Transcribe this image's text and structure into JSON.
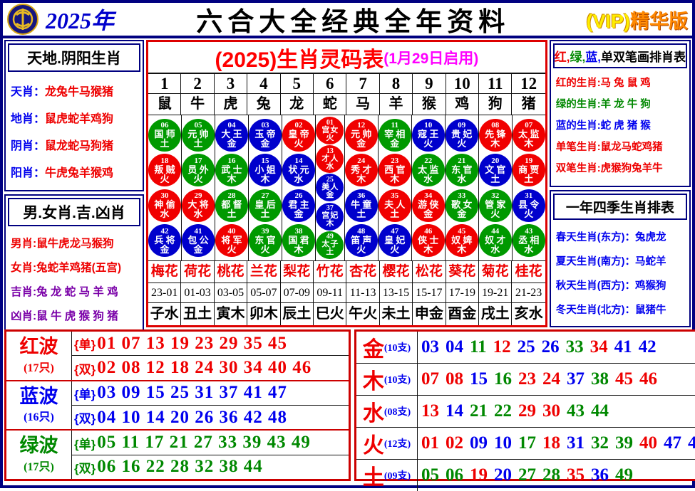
{
  "header": {
    "year": "2025年",
    "title": "六合大全经典全年资料",
    "vip": "(VIP)",
    "vip_edition": "精华版",
    "logo_icon": "coin-emblem"
  },
  "left_top": {
    "title": "天地.阴阳生肖",
    "rows": [
      {
        "label": "天肖",
        "value": "龙兔牛马猴猪"
      },
      {
        "label": "地肖",
        "value": "鼠虎蛇羊鸡狗"
      },
      {
        "label": "阴肖",
        "value": "鼠龙蛇马狗猪"
      },
      {
        "label": "阳肖",
        "value": "牛虎兔羊猴鸡"
      }
    ]
  },
  "left_bottom": {
    "title": "男.女肖.吉.凶肖",
    "rows": [
      {
        "label": "男肖",
        "value": "鼠牛虎龙马猴狗",
        "label_color": "red",
        "value_color": "red"
      },
      {
        "label": "女肖",
        "value": "兔蛇羊鸡猪(五宫)",
        "label_color": "red",
        "value_color": "red"
      },
      {
        "label": "吉肖",
        "value": "兔 龙 蛇 马 羊 鸡",
        "label_color": "purple",
        "value_color": "purple"
      },
      {
        "label": "凶肖",
        "value": "鼠 牛 虎 猴 狗 猪",
        "label_color": "purple",
        "value_color": "purple"
      }
    ]
  },
  "center": {
    "title": "(2025)生肖灵码表",
    "subtitle": "(1月29日启用)",
    "columns": [
      {
        "num": "1",
        "animal": "鼠",
        "flower": "梅花",
        "time": "23-01",
        "zodiac": "子水",
        "balls": [
          {
            "n": "06",
            "r": "国师",
            "e": "土",
            "c": "green"
          },
          {
            "n": "18",
            "r": "叛贼",
            "e": "火",
            "c": "red"
          },
          {
            "n": "30",
            "r": "神偷",
            "e": "水",
            "c": "red"
          },
          {
            "n": "42",
            "r": "兵将",
            "e": "金",
            "c": "blue"
          }
        ]
      },
      {
        "num": "2",
        "animal": "牛",
        "flower": "荷花",
        "time": "01-03",
        "zodiac": "丑土",
        "balls": [
          {
            "n": "05",
            "r": "元帅",
            "e": "土",
            "c": "green"
          },
          {
            "n": "17",
            "r": "员外",
            "e": "火",
            "c": "green"
          },
          {
            "n": "29",
            "r": "大将",
            "e": "水",
            "c": "red"
          },
          {
            "n": "41",
            "r": "包公",
            "e": "金",
            "c": "blue"
          }
        ]
      },
      {
        "num": "3",
        "animal": "虎",
        "flower": "桃花",
        "time": "03-05",
        "zodiac": "寅木",
        "balls": [
          {
            "n": "04",
            "r": "大王",
            "e": "金",
            "c": "blue"
          },
          {
            "n": "16",
            "r": "武士",
            "e": "木",
            "c": "green"
          },
          {
            "n": "28",
            "r": "都督",
            "e": "土",
            "c": "green"
          },
          {
            "n": "40",
            "r": "将军",
            "e": "火",
            "c": "red"
          }
        ]
      },
      {
        "num": "4",
        "animal": "兔",
        "flower": "兰花",
        "time": "05-07",
        "zodiac": "卯木",
        "balls": [
          {
            "n": "03",
            "r": "玉帝",
            "e": "金",
            "c": "blue"
          },
          {
            "n": "15",
            "r": "小姐",
            "e": "木",
            "c": "blue"
          },
          {
            "n": "27",
            "r": "皇后",
            "e": "土",
            "c": "green"
          },
          {
            "n": "39",
            "r": "东官",
            "e": "火",
            "c": "green"
          }
        ]
      },
      {
        "num": "5",
        "animal": "龙",
        "flower": "梨花",
        "time": "07-09",
        "zodiac": "辰土",
        "balls": [
          {
            "n": "02",
            "r": "皇帝",
            "e": "火",
            "c": "red"
          },
          {
            "n": "14",
            "r": "状元",
            "e": "水",
            "c": "blue"
          },
          {
            "n": "26",
            "r": "君主",
            "e": "金",
            "c": "blue"
          },
          {
            "n": "38",
            "r": "国君",
            "e": "木",
            "c": "green"
          }
        ]
      },
      {
        "num": "6",
        "animal": "蛇",
        "flower": "竹花",
        "time": "09-11",
        "zodiac": "巳火",
        "balls": [
          {
            "n": "01",
            "r": "宫女",
            "e": "火",
            "c": "red"
          },
          {
            "n": "13",
            "r": "才人",
            "e": "水",
            "c": "red"
          },
          {
            "n": "25",
            "r": "美人",
            "e": "金",
            "c": "blue"
          },
          {
            "n": "37",
            "r": "宫妃",
            "e": "木",
            "c": "blue"
          },
          {
            "n": "49",
            "r": "太子",
            "e": "土",
            "c": "green"
          }
        ]
      },
      {
        "num": "7",
        "animal": "马",
        "flower": "杏花",
        "time": "11-13",
        "zodiac": "午火",
        "balls": [
          {
            "n": "12",
            "r": "元帅",
            "e": "金",
            "c": "red"
          },
          {
            "n": "24",
            "r": "秀才",
            "e": "木",
            "c": "red"
          },
          {
            "n": "36",
            "r": "牛童",
            "e": "土",
            "c": "blue"
          },
          {
            "n": "48",
            "r": "笛声",
            "e": "火",
            "c": "blue"
          }
        ]
      },
      {
        "num": "8",
        "animal": "羊",
        "flower": "樱花",
        "time": "13-15",
        "zodiac": "未土",
        "balls": [
          {
            "n": "11",
            "r": "宰相",
            "e": "金",
            "c": "green"
          },
          {
            "n": "23",
            "r": "西官",
            "e": "木",
            "c": "red"
          },
          {
            "n": "35",
            "r": "夫人",
            "e": "土",
            "c": "red"
          },
          {
            "n": "47",
            "r": "皇妃",
            "e": "火",
            "c": "blue"
          }
        ]
      },
      {
        "num": "9",
        "animal": "猴",
        "flower": "松花",
        "time": "15-17",
        "zodiac": "申金",
        "balls": [
          {
            "n": "10",
            "r": "寇王",
            "e": "火",
            "c": "blue"
          },
          {
            "n": "22",
            "r": "太监",
            "e": "水",
            "c": "green"
          },
          {
            "n": "34",
            "r": "游侠",
            "e": "金",
            "c": "red"
          },
          {
            "n": "46",
            "r": "侠士",
            "e": "木",
            "c": "red"
          }
        ]
      },
      {
        "num": "10",
        "animal": "鸡",
        "flower": "葵花",
        "time": "17-19",
        "zodiac": "酉金",
        "balls": [
          {
            "n": "09",
            "r": "贵妃",
            "e": "火",
            "c": "blue"
          },
          {
            "n": "21",
            "r": "东官",
            "e": "水",
            "c": "green"
          },
          {
            "n": "33",
            "r": "歌女",
            "e": "金",
            "c": "green"
          },
          {
            "n": "45",
            "r": "奴婢",
            "e": "木",
            "c": "red"
          }
        ]
      },
      {
        "num": "11",
        "animal": "狗",
        "flower": "菊花",
        "time": "19-21",
        "zodiac": "戌土",
        "balls": [
          {
            "n": "08",
            "r": "先锋",
            "e": "木",
            "c": "red"
          },
          {
            "n": "20",
            "r": "文官",
            "e": "土",
            "c": "blue"
          },
          {
            "n": "32",
            "r": "管家",
            "e": "火",
            "c": "green"
          },
          {
            "n": "44",
            "r": "奴才",
            "e": "水",
            "c": "green"
          }
        ]
      },
      {
        "num": "12",
        "animal": "猪",
        "flower": "桂花",
        "time": "21-23",
        "zodiac": "亥水",
        "balls": [
          {
            "n": "07",
            "r": "太监",
            "e": "木",
            "c": "red"
          },
          {
            "n": "19",
            "r": "商贾",
            "e": "土",
            "c": "red"
          },
          {
            "n": "31",
            "r": "县令",
            "e": "火",
            "c": "blue"
          },
          {
            "n": "43",
            "r": "丞相",
            "e": "水",
            "c": "green"
          }
        ]
      }
    ]
  },
  "right_top": {
    "title_parts": [
      {
        "t": "红,",
        "c": "red"
      },
      {
        "t": "绿,",
        "c": "green"
      },
      {
        "t": "蓝,",
        "c": "blue"
      },
      {
        "t": "单双笔画排肖表",
        "c": "black"
      }
    ],
    "rows": [
      {
        "label": "红的生肖",
        "value": "马 兔 鼠 鸡",
        "color": "red"
      },
      {
        "label": "绿的生肖",
        "value": "羊 龙 牛 狗",
        "color": "green"
      },
      {
        "label": "蓝的生肖",
        "value": "蛇 虎 猪 猴",
        "color": "blue"
      },
      {
        "label": "单笔生肖",
        "value": "鼠龙马蛇鸡猪",
        "color": "red"
      },
      {
        "label": "双笔生肖",
        "value": "虎猴狗兔羊牛",
        "color": "red"
      }
    ]
  },
  "right_bottom": {
    "title": "一年四季生肖排表",
    "rows": [
      {
        "label": "春天生肖(东方)",
        "value": "兔虎龙",
        "color": "blue"
      },
      {
        "label": "夏天生肖(南方)",
        "value": "马蛇羊",
        "color": "blue"
      },
      {
        "label": "秋天生肖(西方)",
        "value": "鸡猴狗",
        "color": "blue"
      },
      {
        "label": "冬天生肖(北方)",
        "value": "鼠猪牛",
        "color": "blue"
      }
    ]
  },
  "labels": {
    "odd_tag": "{单}",
    "even_tag": "{双}"
  },
  "waves": [
    {
      "name": "红波",
      "count": "(17只)",
      "color": "red",
      "odd": "01 07 13 19 23 29 35 45",
      "even": "02 08 12 18 24 30 34 40 46"
    },
    {
      "name": "蓝波",
      "count": "(16只)",
      "color": "blue",
      "odd": "03 09 15 25 31 37 41 47",
      "even": "04 10 14 20 26 36 42 48"
    },
    {
      "name": "绿波",
      "count": "(17只)",
      "color": "green",
      "odd": "05 11 17 21 27 33 39 43 49",
      "even": "06 16 22 28 32 38 44"
    }
  ],
  "elements": [
    {
      "name": "金",
      "count": "(10支)",
      "nums": [
        {
          "v": "03",
          "c": "blue"
        },
        {
          "v": "04",
          "c": "blue"
        },
        {
          "v": "11",
          "c": "green"
        },
        {
          "v": "12",
          "c": "red"
        },
        {
          "v": "25",
          "c": "blue"
        },
        {
          "v": "26",
          "c": "blue"
        },
        {
          "v": "33",
          "c": "green"
        },
        {
          "v": "34",
          "c": "red"
        },
        {
          "v": "41",
          "c": "blue"
        },
        {
          "v": "42",
          "c": "blue"
        }
      ]
    },
    {
      "name": "木",
      "count": "(10支)",
      "nums": [
        {
          "v": "07",
          "c": "red"
        },
        {
          "v": "08",
          "c": "red"
        },
        {
          "v": "15",
          "c": "blue"
        },
        {
          "v": "16",
          "c": "green"
        },
        {
          "v": "23",
          "c": "red"
        },
        {
          "v": "24",
          "c": "red"
        },
        {
          "v": "37",
          "c": "blue"
        },
        {
          "v": "38",
          "c": "green"
        },
        {
          "v": "45",
          "c": "red"
        },
        {
          "v": "46",
          "c": "red"
        }
      ]
    },
    {
      "name": "水",
      "count": "(08支)",
      "nums": [
        {
          "v": "13",
          "c": "red"
        },
        {
          "v": "14",
          "c": "blue"
        },
        {
          "v": "21",
          "c": "green"
        },
        {
          "v": "22",
          "c": "green"
        },
        {
          "v": "29",
          "c": "red"
        },
        {
          "v": "30",
          "c": "red"
        },
        {
          "v": "43",
          "c": "green"
        },
        {
          "v": "44",
          "c": "green"
        }
      ]
    },
    {
      "name": "火",
      "count": "(12支)",
      "nums": [
        {
          "v": "01",
          "c": "red"
        },
        {
          "v": "02",
          "c": "red"
        },
        {
          "v": "09",
          "c": "blue"
        },
        {
          "v": "10",
          "c": "blue"
        },
        {
          "v": "17",
          "c": "green"
        },
        {
          "v": "18",
          "c": "red"
        },
        {
          "v": "31",
          "c": "blue"
        },
        {
          "v": "32",
          "c": "green"
        },
        {
          "v": "39",
          "c": "green"
        },
        {
          "v": "40",
          "c": "red"
        },
        {
          "v": "47",
          "c": "blue"
        },
        {
          "v": "48",
          "c": "blue"
        }
      ]
    },
    {
      "name": "土",
      "count": "(09支)",
      "nums": [
        {
          "v": "05",
          "c": "green"
        },
        {
          "v": "06",
          "c": "green"
        },
        {
          "v": "19",
          "c": "red"
        },
        {
          "v": "20",
          "c": "blue"
        },
        {
          "v": "27",
          "c": "green"
        },
        {
          "v": "28",
          "c": "green"
        },
        {
          "v": "35",
          "c": "red"
        },
        {
          "v": "36",
          "c": "blue"
        },
        {
          "v": "49",
          "c": "green"
        }
      ]
    }
  ]
}
